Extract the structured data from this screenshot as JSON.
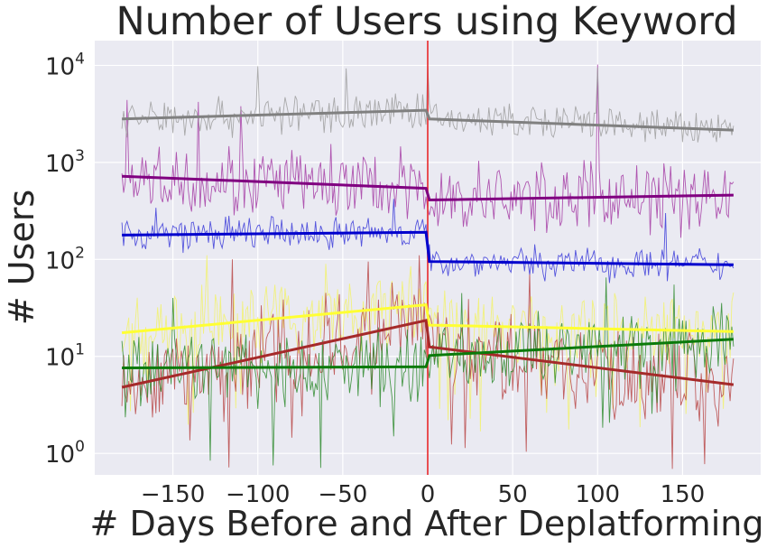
{
  "chart_data": {
    "type": "line",
    "title": "Number of Users using Keyword",
    "xlabel": "# Days Before and After Deplatforming",
    "ylabel": "# Users",
    "y_scale": "log10",
    "xlim": [
      -196,
      196
    ],
    "ylim": [
      0.6,
      18000
    ],
    "x_ticks": [
      -150,
      -100,
      -50,
      0,
      50,
      100,
      150
    ],
    "x_tick_labels": [
      "−150",
      "−100",
      "−50",
      "0",
      "50",
      "100",
      "150"
    ],
    "y_ticks": [
      1,
      10,
      100,
      1000,
      10000
    ],
    "y_tick_labels": [
      {
        "base": "10",
        "exp": "0"
      },
      {
        "base": "10",
        "exp": "1"
      },
      {
        "base": "10",
        "exp": "2"
      },
      {
        "base": "10",
        "exp": "3"
      },
      {
        "base": "10",
        "exp": "4"
      }
    ],
    "grid": true,
    "background": "#EAEAF2",
    "event_line": {
      "x": 0,
      "color": "#E8272A"
    },
    "trend_lines": [
      {
        "color": "#808080",
        "before": [
          [
            -180,
            2800
          ],
          [
            -1,
            3450
          ]
        ],
        "after": [
          [
            1,
            2800
          ],
          [
            180,
            2150
          ]
        ]
      },
      {
        "color": "#800080",
        "before": [
          [
            -180,
            720
          ],
          [
            -1,
            540
          ]
        ],
        "after": [
          [
            1,
            410
          ],
          [
            180,
            460
          ]
        ]
      },
      {
        "color": "#0000CD",
        "before": [
          [
            -180,
            178
          ],
          [
            -1,
            190
          ]
        ],
        "after": [
          [
            1,
            95
          ],
          [
            180,
            88
          ]
        ]
      },
      {
        "color": "#FFFF33",
        "before": [
          [
            -180,
            17.5
          ],
          [
            -1,
            34
          ]
        ],
        "after": [
          [
            1,
            21
          ],
          [
            180,
            18
          ]
        ]
      },
      {
        "color": "#A52A2A",
        "before": [
          [
            -180,
            4.8
          ],
          [
            -1,
            23.5
          ]
        ],
        "after": [
          [
            1,
            12.5
          ],
          [
            180,
            5.1
          ]
        ]
      },
      {
        "color": "#0A7A0A",
        "before": [
          [
            -180,
            7.6
          ],
          [
            -1,
            7.8
          ]
        ],
        "after": [
          [
            1,
            10.2
          ],
          [
            180,
            15
          ]
        ]
      }
    ],
    "daily_series": [
      {
        "color": "#9E9E9E",
        "spikes": [
          [
            -100,
            9800
          ],
          [
            -48,
            9300
          ],
          [
            0,
            10000
          ],
          [
            100,
            9500
          ]
        ]
      },
      {
        "color": "#A43BA4",
        "spikes": [
          [
            -177,
            4400
          ],
          [
            -135,
            4200
          ],
          [
            -110,
            3800
          ],
          [
            100,
            10200
          ]
        ]
      },
      {
        "color": "#3B3BD9",
        "spikes": [
          [
            -160,
            340
          ],
          [
            -20,
            420
          ],
          [
            140,
            300
          ]
        ]
      },
      {
        "color": "#F2F26B",
        "spikes": [
          [
            -130,
            110
          ],
          [
            -60,
            90
          ],
          [
            -10,
            85
          ]
        ]
      },
      {
        "color": "#B84646",
        "spikes": [
          [
            -115,
            100
          ],
          [
            -35,
            95
          ],
          [
            -5,
            110
          ],
          [
            60,
            75
          ]
        ]
      },
      {
        "color": "#2E8B2E",
        "spikes": [
          [
            -150,
            40
          ],
          [
            20,
            45
          ],
          [
            105,
            65
          ],
          [
            145,
            55
          ]
        ]
      }
    ]
  }
}
